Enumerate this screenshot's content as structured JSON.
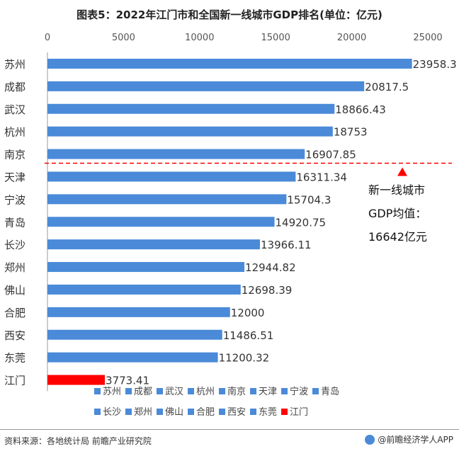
{
  "title": "图表5：2022年江门市和全国新一线城市GDP排名(单位：亿元)",
  "source": "资料来源：各地统计局 前瞻产业研究院",
  "brand": "@前瞻经济学人APP",
  "annotation": {
    "line1": "新一线城市",
    "line2": "GDP均值：",
    "line3": "16642亿元"
  },
  "colors": {
    "bar": "#4a8ad8",
    "highlight": "#ff0000",
    "average_line": "#ff0000"
  },
  "chart_data": {
    "type": "bar",
    "orientation": "horizontal",
    "categories": [
      "苏州",
      "成都",
      "武汉",
      "杭州",
      "南京",
      "天津",
      "宁波",
      "青岛",
      "长沙",
      "郑州",
      "佛山",
      "合肥",
      "西安",
      "东莞",
      "江门"
    ],
    "values": [
      23958.3,
      20817.5,
      18866.43,
      18753,
      16907.85,
      16311.34,
      15704.3,
      14920.75,
      13966.11,
      12944.82,
      12698.39,
      12000,
      11486.51,
      11200.32,
      3773.41
    ],
    "value_labels": [
      "23958.3",
      "20817.5",
      "18866.43",
      "18753",
      "16907.85",
      "16311.34",
      "15704.3",
      "14920.75",
      "13966.11",
      "12944.82",
      "12698.39",
      "12000",
      "11486.51",
      "11200.32",
      "3773.41"
    ],
    "highlight_category": "江门",
    "average": 16642,
    "xlim": [
      0,
      25000
    ],
    "xticks": [
      0,
      5000,
      10000,
      15000,
      20000,
      25000
    ],
    "xtick_labels": [
      "0",
      "5000",
      "10000",
      "15000",
      "20000",
      "25000"
    ],
    "legend": [
      "苏州",
      "成都",
      "武汉",
      "杭州",
      "南京",
      "天津",
      "宁波",
      "青岛",
      "长沙",
      "郑州",
      "佛山",
      "合肥",
      "西安",
      "东莞",
      "江门"
    ],
    "legend_position": "bottom"
  }
}
